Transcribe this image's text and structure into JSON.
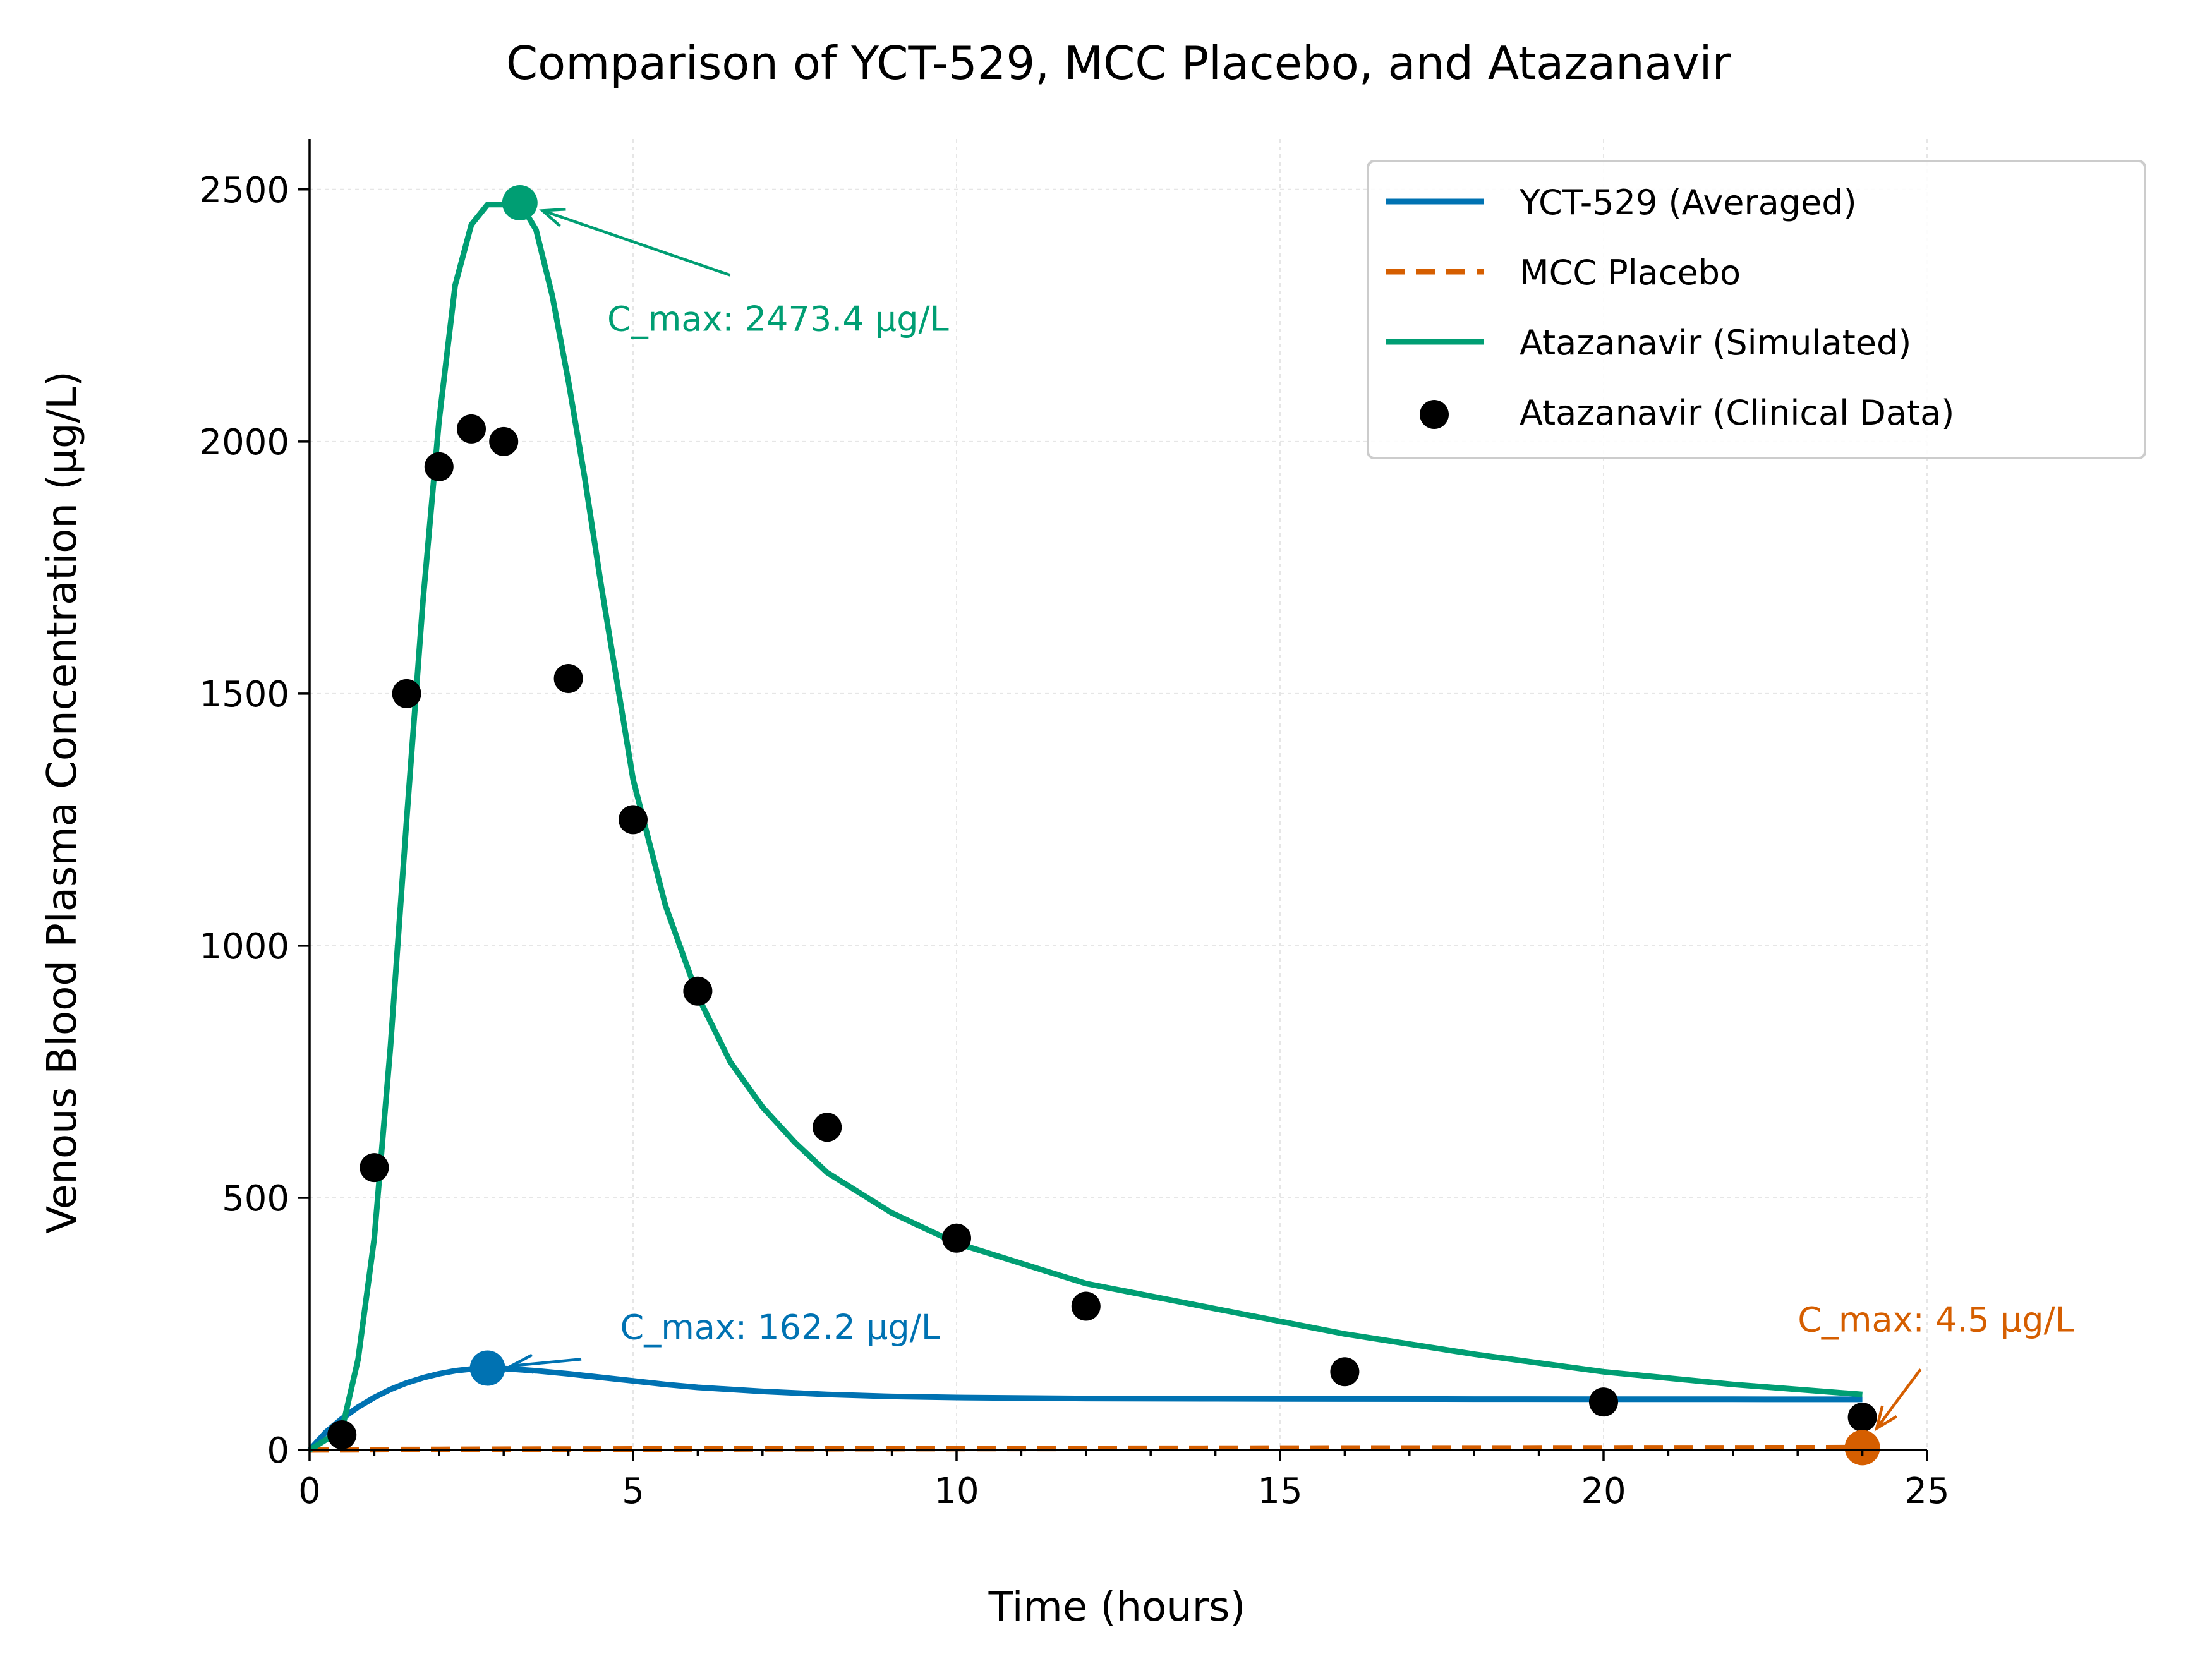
{
  "chart_data": {
    "type": "line",
    "title": "Comparison of YCT-529, MCC Placebo, and Atazanavir",
    "xlabel": "Time (hours)",
    "ylabel": "Venous Blood Plasma Concentration (µg/L)",
    "xlim": [
      0,
      25
    ],
    "ylim": [
      0,
      2600
    ],
    "xticks": [
      0,
      5,
      10,
      15,
      20,
      25
    ],
    "yticks": [
      0,
      500,
      1000,
      1500,
      2000,
      2500
    ],
    "grid": true,
    "legend_position": "top-right",
    "series": [
      {
        "name": "YCT-529 (Averaged)",
        "kind": "line",
        "style": "solid",
        "color": "#0072B2",
        "x": [
          0,
          0.25,
          0.5,
          0.75,
          1,
          1.25,
          1.5,
          1.75,
          2,
          2.25,
          2.5,
          2.75,
          3,
          3.5,
          4,
          4.5,
          5,
          5.5,
          6,
          7,
          8,
          9,
          10,
          12,
          14,
          16,
          18,
          20,
          22,
          24
        ],
        "y": [
          0,
          35,
          62,
          85,
          104,
          120,
          133,
          143,
          151,
          157,
          160.5,
          162.2,
          161.5,
          157,
          151,
          144,
          137,
          130,
          124,
          116,
          110,
          106,
          104,
          102,
          101.5,
          101,
          100.8,
          100.6,
          100.5,
          100.4
        ]
      },
      {
        "name": "MCC Placebo",
        "kind": "line",
        "style": "dashed",
        "color": "#D55E00",
        "x": [
          0,
          1,
          2,
          4,
          6,
          8,
          10,
          12,
          14,
          16,
          18,
          20,
          22,
          24
        ],
        "y": [
          0,
          0.5,
          1,
          1.6,
          2,
          2.4,
          2.8,
          3.1,
          3.4,
          3.7,
          3.9,
          4.1,
          4.3,
          4.5
        ]
      },
      {
        "name": "Atazanavir (Simulated)",
        "kind": "line",
        "style": "solid",
        "color": "#009E73",
        "x": [
          0,
          0.5,
          0.75,
          1,
          1.25,
          1.5,
          1.75,
          2,
          2.25,
          2.5,
          2.75,
          3,
          3.25,
          3.5,
          3.75,
          4,
          4.25,
          4.5,
          5,
          5.5,
          6,
          6.5,
          7,
          7.5,
          8,
          9,
          10,
          11,
          12,
          14,
          16,
          18,
          20,
          22,
          24
        ],
        "y": [
          0,
          40,
          180,
          420,
          800,
          1250,
          1680,
          2040,
          2310,
          2430,
          2470,
          2470,
          2473.4,
          2420,
          2290,
          2120,
          1930,
          1720,
          1330,
          1080,
          900,
          770,
          680,
          610,
          550,
          470,
          410,
          370,
          330,
          280,
          230,
          190,
          155,
          130,
          110
        ]
      },
      {
        "name": "Atazanavir (Clinical Data)",
        "kind": "scatter",
        "color": "#000000",
        "x": [
          0.5,
          1,
          1.5,
          2,
          2.5,
          3,
          4,
          5,
          6,
          8,
          10,
          12,
          16,
          20,
          24
        ],
        "y": [
          30,
          560,
          1500,
          1950,
          2025,
          2000,
          1530,
          1250,
          910,
          640,
          420,
          285,
          155,
          95,
          65
        ]
      }
    ],
    "annotations": [
      {
        "text": "C_max: 2473.4 µg/L",
        "color": "#009E73",
        "point": [
          3.25,
          2473.4
        ],
        "text_at": [
          4.6,
          2220
        ],
        "arrow_from": [
          6.5,
          2330
        ]
      },
      {
        "text": "C_max: 162.2 µg/L",
        "color": "#0072B2",
        "point": [
          2.75,
          162.2
        ],
        "text_at": [
          4.8,
          220
        ],
        "arrow_from": [
          4.2,
          180
        ]
      },
      {
        "text": "C_max: 4.5 µg/L",
        "color": "#D55E00",
        "point": [
          24,
          4.5
        ],
        "text_at": [
          23,
          235
        ],
        "arrow_from": [
          24.9,
          160
        ]
      }
    ]
  }
}
